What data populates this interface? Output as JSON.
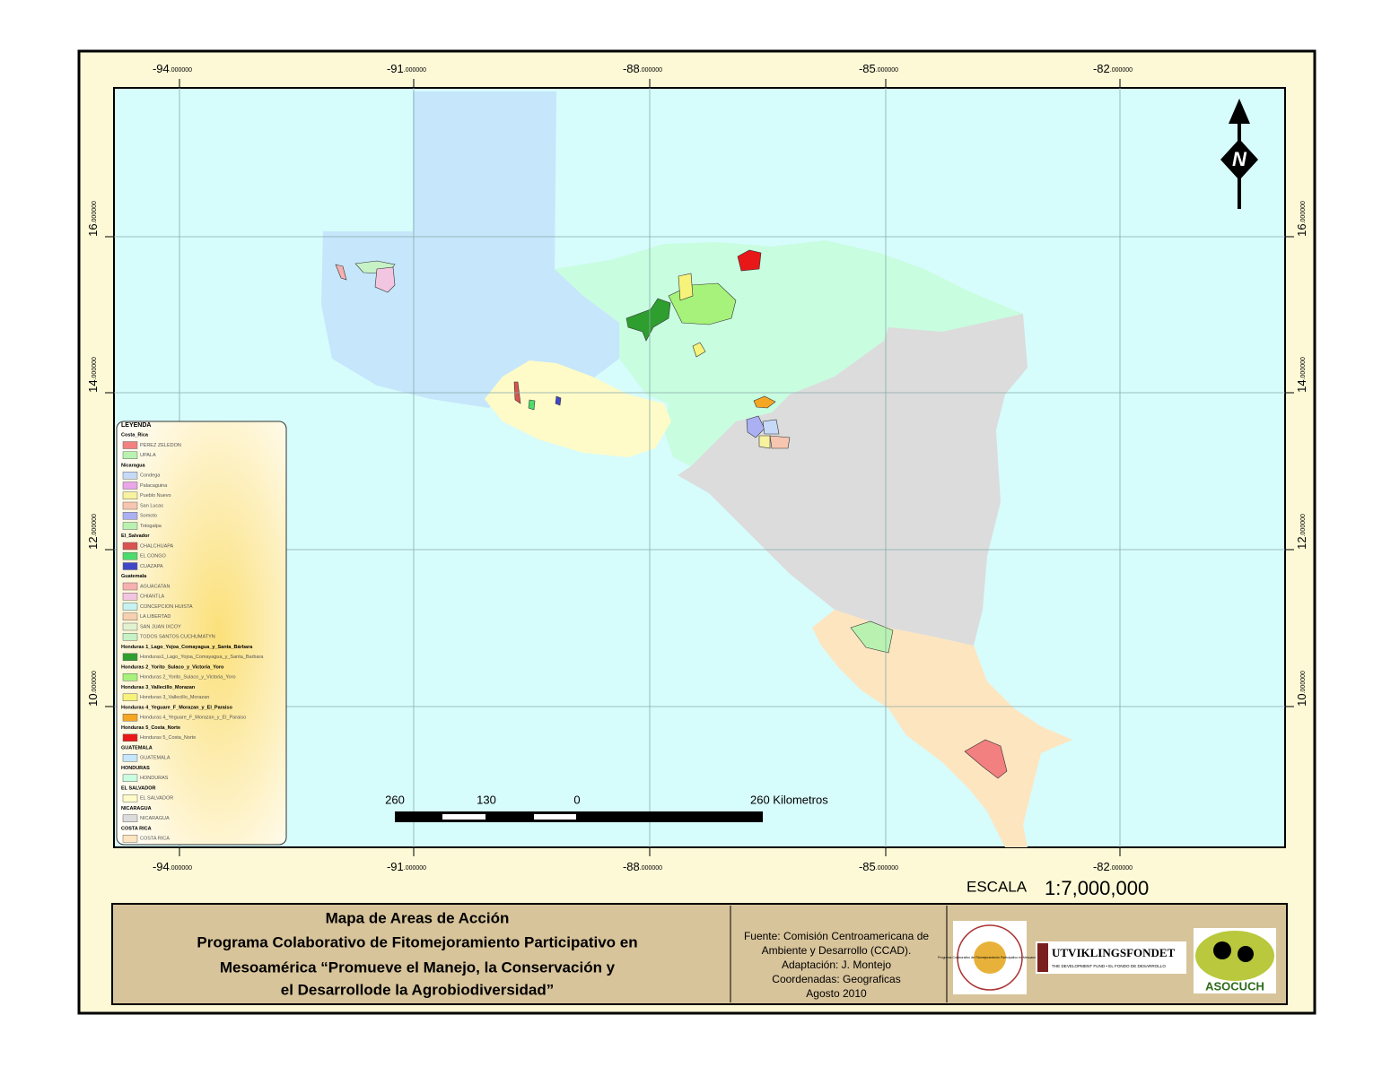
{
  "graticule": {
    "longitudes": [
      {
        "deg": "-94",
        "dec": "000000"
      },
      {
        "deg": "-91",
        "dec": "000000"
      },
      {
        "deg": "-88",
        "dec": "000000"
      },
      {
        "deg": "-85",
        "dec": "000000"
      },
      {
        "deg": "-82",
        "dec": "000000"
      }
    ],
    "latitudes": [
      {
        "deg": "16",
        "dec": "000000"
      },
      {
        "deg": "14",
        "dec": "000000"
      },
      {
        "deg": "12",
        "dec": "000000"
      },
      {
        "deg": "10",
        "dec": "000000"
      }
    ]
  },
  "north_arrow": "N",
  "legend": {
    "title": "LEYENDA",
    "groups": [
      {
        "title": "Costa_Rica",
        "items": [
          {
            "label": "PEREZ ZELEDON",
            "color": "#f28080"
          },
          {
            "label": "UPALA",
            "color": "#b9f2b0"
          }
        ]
      },
      {
        "title": "Nicaragua",
        "items": [
          {
            "label": "Condega",
            "color": "#c6d9f7"
          },
          {
            "label": "Palacaguina",
            "color": "#e9a6e9"
          },
          {
            "label": "Pueblo Nuevo",
            "color": "#f7f2a0"
          },
          {
            "label": "San Lucas",
            "color": "#f7c6b0"
          },
          {
            "label": "Somoto",
            "color": "#aab0f2"
          },
          {
            "label": "Totogalpa",
            "color": "#b9f2b0"
          }
        ]
      },
      {
        "title": "El_Salvador",
        "items": [
          {
            "label": "CHALCHUAPA",
            "color": "#d9534f"
          },
          {
            "label": "EL CONGO",
            "color": "#4cdc6c"
          },
          {
            "label": "CUAZAPA",
            "color": "#4048c8"
          }
        ]
      },
      {
        "title": "Guatemala",
        "items": [
          {
            "label": "AGUACATAN",
            "color": "#f7b0b0"
          },
          {
            "label": "CHIANTLA",
            "color": "#f2c6e0"
          },
          {
            "label": "CONCEPCION HUISTA",
            "color": "#c6f2f2"
          },
          {
            "label": "LA LIBERTAD",
            "color": "#f7d0b0"
          },
          {
            "label": "SAN JUAN IXCOY",
            "color": "#e0f2d0"
          },
          {
            "label": "TODOS SANTOS CUCHUMATYN",
            "color": "#c6f2c6"
          }
        ]
      },
      {
        "title": "Honduras 1_Lago_Yojoa_Comayagua_y_Santa_Bárbara",
        "items": [
          {
            "label": "Honduras1_Lago_Yojoa_Comayagua_y_Santa_Barbara",
            "color": "#2e9e2e"
          }
        ]
      },
      {
        "title": "Honduras 2_Yorito_Sulaco_y_Victoria_Yoro",
        "items": [
          {
            "label": "Honduras 2_Yorito_Sulaco_y_Victoria_Yoro",
            "color": "#a6f27a"
          }
        ]
      },
      {
        "title": "Honduras 3_Vallecillo_Morazan",
        "items": [
          {
            "label": "Honduras 3_Vallecillo_Morazan",
            "color": "#f7f27a"
          }
        ]
      },
      {
        "title": "Honduras 4_Yeguare_F_Morazan_y_El_Paraiso",
        "items": [
          {
            "label": "Honduras 4_Yeguare_F_Morazan_y_El_Paraiso",
            "color": "#f5a623"
          }
        ]
      },
      {
        "title": "Honduras 5_Costa_Norte",
        "items": [
          {
            "label": "Honduras 5_Costa_Norte",
            "color": "#e81818"
          }
        ]
      },
      {
        "title": "GUATEMALA",
        "items": [
          {
            "label": "GUATEMALA",
            "color": "#c5e6fb"
          }
        ]
      },
      {
        "title": "HONDURAS",
        "items": [
          {
            "label": "HONDURAS",
            "color": "#c8fde0"
          }
        ]
      },
      {
        "title": "EL SALVADOR",
        "items": [
          {
            "label": "EL SALVADOR",
            "color": "#fffbc8"
          }
        ]
      },
      {
        "title": "NICARAGUA",
        "items": [
          {
            "label": "NICARAGUA",
            "color": "#dcdcdc"
          }
        ]
      },
      {
        "title": "COSTA RICA",
        "items": [
          {
            "label": "COSTA RICA",
            "color": "#fde5c0"
          }
        ]
      }
    ]
  },
  "scale_bar": {
    "labels": [
      "260",
      "130",
      "0",
      "260 Kilometros"
    ],
    "scale_title": "ESCALA",
    "scale": "1:7,000,000"
  },
  "title_block": {
    "title_lines": [
      "Mapa de Areas de Acción",
      "Programa Colaborativo de Fitomejoramiento  Participativo en",
      "Mesoamérica “Promueve el Manejo, la Conservación y",
      "el Desarrollode la Agrobiodiversidad”"
    ],
    "source_lines": [
      "Fuente:  Comisión Centroamericana de",
      "Ambiente y Desarrollo (CCAD).",
      "Adaptación: J. Montejo",
      "Coordenadas: Geograficas",
      "Agosto 2010"
    ],
    "logos": {
      "circle": "Programa Colaborativo de Fitomejoramiento Participativo en Mesoamérica",
      "fund": "UTVIKLINGSFONDET",
      "fund_tagline": "THE DEVELOPMENT FUND • EL FONDO DE DESARROLLO",
      "asocuch": "ASOCUCH"
    }
  }
}
